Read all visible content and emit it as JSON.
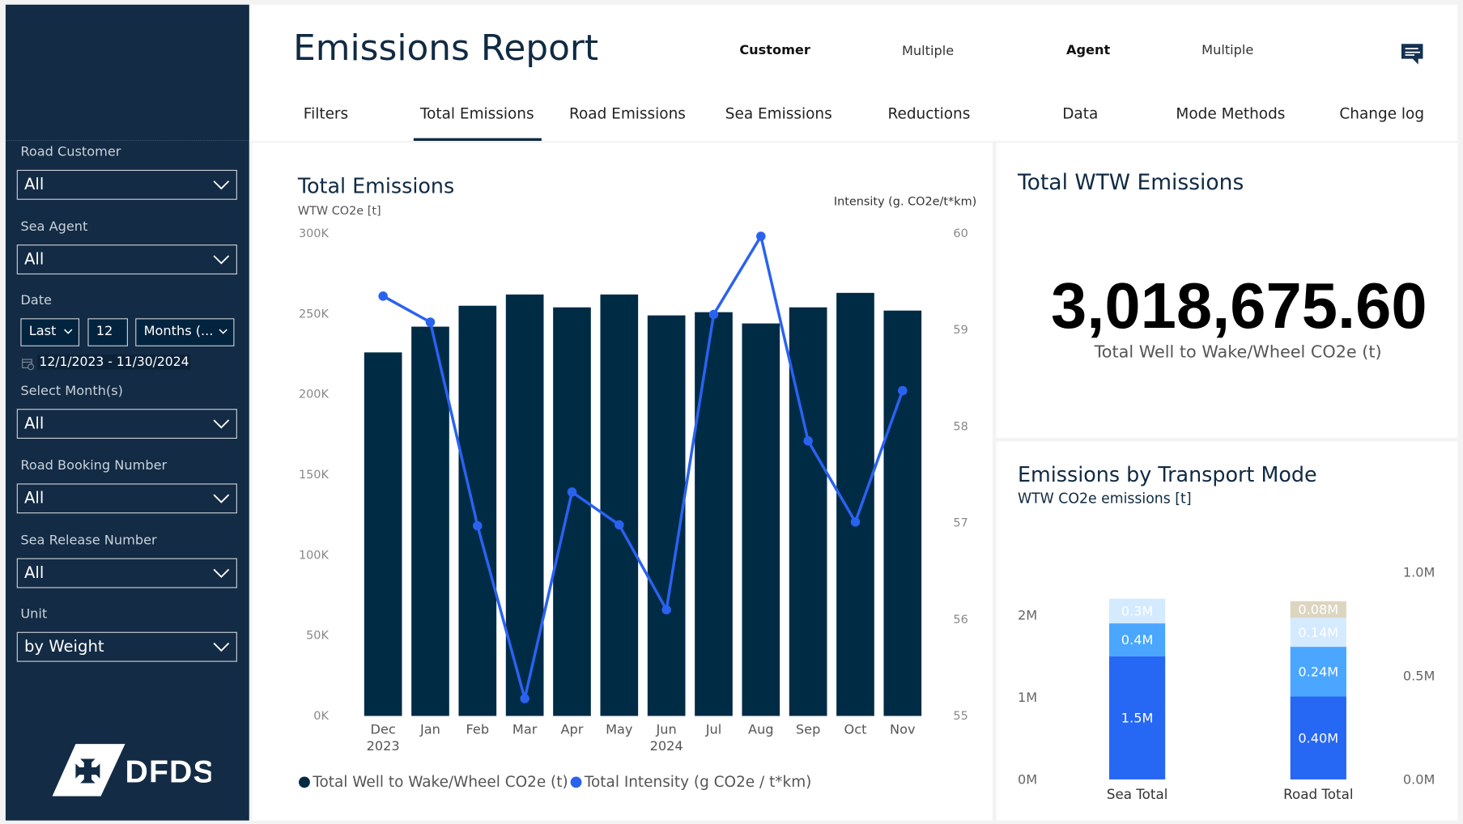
{
  "header": {
    "title": "Emissions Report",
    "customer_label": "Customer",
    "customer_value": "Multiple",
    "agent_label": "Agent",
    "agent_value": "Multiple",
    "chat_icon": "comment-lines-icon"
  },
  "tabs": [
    {
      "label": "Filters"
    },
    {
      "label": "Total Emissions",
      "active": true
    },
    {
      "label": "Road Emissions"
    },
    {
      "label": "Sea Emissions"
    },
    {
      "label": "Reductions"
    },
    {
      "label": "Data"
    },
    {
      "label": "Mode Methods"
    },
    {
      "label": "Change log"
    }
  ],
  "sidebar": {
    "road_customer": {
      "label": "Road Customer",
      "value": "All"
    },
    "sea_agent": {
      "label": "Sea Agent",
      "value": "All"
    },
    "date": {
      "label": "Date",
      "mode": "Last",
      "count": "12",
      "unit": "Months (...",
      "range": "12/1/2023 - 11/30/2024"
    },
    "select_months": {
      "label": "Select Month(s)",
      "value": "All"
    },
    "road_booking": {
      "label": "Road Booking Number",
      "value": "All"
    },
    "sea_release": {
      "label": "Sea Release Number",
      "value": "All"
    },
    "unit": {
      "label": "Unit",
      "value": "by Weight"
    },
    "logo": "DFDS"
  },
  "kpi": {
    "title": "Total WTW Emissions",
    "value": "3,018,675.60",
    "caption": "Total Well to Wake/Wheel CO2e (t)"
  },
  "colors": {
    "sidebar": "#132b44",
    "bar": "#002b45",
    "line": "#2a62f0",
    "sea_main": "#2667f4",
    "sea_mid": "#4aa6ff",
    "sea_light": "#d4eaff",
    "road_top": "#dcd5c0"
  },
  "chart_data": [
    {
      "type": "bar+line",
      "title": "Total Emissions",
      "ylabel": "WTW CO2e [t]",
      "y2label": "Intensity (g. CO2e/t*km)",
      "categories": [
        "Dec 2023",
        "Jan",
        "Feb",
        "Mar",
        "Apr",
        "May",
        "Jun 2024",
        "Jul",
        "Aug",
        "Sep",
        "Oct",
        "Nov"
      ],
      "ylim": [
        0,
        300000
      ],
      "yticks": [
        "0K",
        "50K",
        "100K",
        "150K",
        "200K",
        "250K",
        "300K"
      ],
      "y2lim": [
        55,
        60
      ],
      "y2ticks": [
        "55",
        "56",
        "57",
        "58",
        "59",
        "60"
      ],
      "series": [
        {
          "name": "Total Well to Wake/Wheel CO2e (t)",
          "type": "bar",
          "values": [
            226000,
            242000,
            255000,
            262000,
            254000,
            262000,
            249000,
            251000,
            244000,
            254000,
            263000,
            252000
          ]
        },
        {
          "name": "Total Intensity (g CO2e / t*km)",
          "type": "line",
          "values": [
            59.35,
            59.08,
            56.97,
            55.18,
            57.32,
            56.98,
            56.1,
            59.16,
            59.97,
            57.85,
            57.01,
            58.37
          ]
        }
      ],
      "legend": "bottom-left"
    },
    {
      "type": "stacked-bar",
      "title": "Emissions by Transport Mode",
      "subtitle": "WTW CO2e emissions [t]",
      "categories": [
        "Sea Total",
        "Road Total"
      ],
      "yticks": [
        "0M",
        "1M",
        "2M"
      ],
      "ylim": [
        0,
        2.2
      ],
      "y2ticks": [
        "0.0M",
        "0.5M",
        "1.0M"
      ],
      "y2lim": [
        0,
        1.0
      ],
      "stacks": [
        {
          "category": "Sea Total",
          "axis": "left",
          "segments": [
            {
              "value": 1.5,
              "label": "1.5M",
              "color": "#2667f4"
            },
            {
              "value": 0.4,
              "label": "0.4M",
              "color": "#4aa6ff"
            },
            {
              "value": 0.3,
              "label": "0.3M",
              "color": "#d4eaff"
            }
          ]
        },
        {
          "category": "Road Total",
          "axis": "right",
          "segments": [
            {
              "value": 0.4,
              "label": "0.40M",
              "color": "#2667f4"
            },
            {
              "value": 0.24,
              "label": "0.24M",
              "color": "#4aa6ff"
            },
            {
              "value": 0.14,
              "label": "0.14M",
              "color": "#d4eaff"
            },
            {
              "value": 0.08,
              "label": "0.08M",
              "color": "#dcd5c0"
            }
          ]
        }
      ]
    }
  ]
}
